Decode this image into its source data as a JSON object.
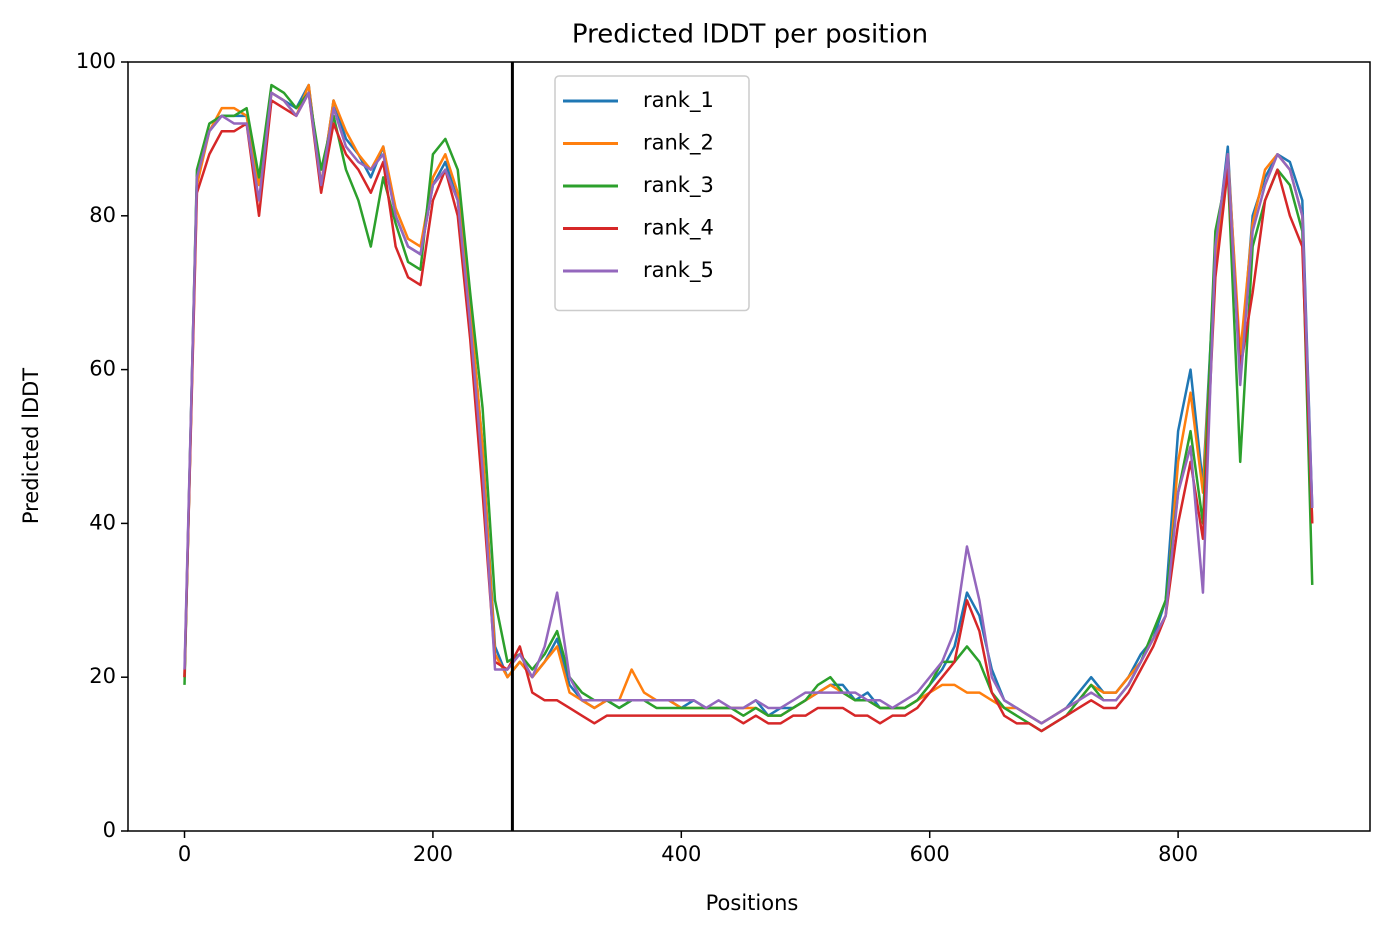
{
  "chart_data": {
    "type": "line",
    "title": "Predicted lDDT per position",
    "xlabel": "Positions",
    "ylabel": "Predicted lDDT",
    "xlim": [
      -45.5,
      954.5
    ],
    "ylim": [
      0,
      100
    ],
    "xticks": [
      0,
      200,
      400,
      600,
      800
    ],
    "yticks": [
      0,
      20,
      40,
      60,
      80,
      100
    ],
    "vline": 264,
    "vline_color": "#000000",
    "legend": "upper center",
    "grid": false,
    "x": [
      0,
      10,
      20,
      30,
      40,
      50,
      60,
      70,
      80,
      90,
      100,
      110,
      120,
      130,
      140,
      150,
      160,
      170,
      180,
      190,
      200,
      210,
      220,
      230,
      240,
      250,
      260,
      270,
      280,
      290,
      300,
      310,
      320,
      330,
      340,
      350,
      360,
      370,
      380,
      390,
      400,
      410,
      420,
      430,
      440,
      450,
      460,
      470,
      480,
      490,
      500,
      510,
      520,
      530,
      540,
      550,
      560,
      570,
      580,
      590,
      600,
      610,
      620,
      630,
      640,
      650,
      660,
      670,
      680,
      690,
      700,
      710,
      720,
      730,
      740,
      750,
      760,
      770,
      780,
      790,
      800,
      810,
      820,
      830,
      840,
      850,
      860,
      870,
      880,
      890,
      900,
      908
    ],
    "series": [
      {
        "name": "rank_1",
        "color": "#1f77b4",
        "values": [
          20,
          85,
          91,
          93,
          93,
          93,
          84,
          96,
          95,
          94,
          97,
          84,
          95,
          90,
          88,
          85,
          89,
          80,
          76,
          75,
          84,
          87,
          82,
          68,
          50,
          24,
          20,
          22,
          20,
          22,
          25,
          19,
          17,
          16,
          17,
          16,
          17,
          17,
          17,
          17,
          16,
          17,
          16,
          16,
          16,
          16,
          17,
          15,
          16,
          16,
          17,
          18,
          19,
          19,
          17,
          18,
          16,
          16,
          16,
          17,
          19,
          21,
          24,
          31,
          28,
          21,
          17,
          16,
          15,
          14,
          15,
          16,
          18,
          20,
          18,
          18,
          20,
          23,
          25,
          30,
          52,
          60,
          45,
          75,
          89,
          60,
          80,
          85,
          88,
          87,
          82,
          42
        ]
      },
      {
        "name": "rank_2",
        "color": "#ff7f0e",
        "values": [
          20,
          84,
          91,
          94,
          94,
          93,
          84,
          96,
          95,
          93,
          97,
          84,
          95,
          91,
          88,
          86,
          89,
          81,
          77,
          76,
          85,
          88,
          83,
          68,
          50,
          23,
          20,
          22,
          20,
          22,
          24,
          18,
          17,
          16,
          17,
          17,
          21,
          18,
          17,
          17,
          16,
          16,
          16,
          16,
          16,
          16,
          16,
          15,
          15,
          16,
          17,
          18,
          19,
          18,
          17,
          17,
          16,
          16,
          16,
          17,
          18,
          19,
          19,
          18,
          18,
          17,
          16,
          16,
          15,
          14,
          15,
          16,
          17,
          19,
          18,
          18,
          20,
          22,
          25,
          28,
          48,
          57,
          44,
          74,
          88,
          62,
          79,
          86,
          88,
          86,
          80,
          40
        ]
      },
      {
        "name": "rank_3",
        "color": "#2ca02c",
        "values": [
          19,
          86,
          92,
          93,
          93,
          94,
          85,
          97,
          96,
          94,
          96,
          86,
          93,
          86,
          82,
          76,
          85,
          79,
          74,
          73,
          88,
          90,
          86,
          70,
          55,
          30,
          22,
          23,
          21,
          23,
          26,
          20,
          18,
          17,
          17,
          16,
          17,
          17,
          16,
          16,
          16,
          16,
          16,
          16,
          16,
          15,
          16,
          15,
          15,
          16,
          17,
          19,
          20,
          18,
          17,
          17,
          16,
          16,
          16,
          17,
          19,
          22,
          22,
          24,
          22,
          18,
          16,
          15,
          14,
          13,
          14,
          15,
          17,
          19,
          17,
          17,
          19,
          22,
          26,
          30,
          44,
          52,
          40,
          78,
          86,
          48,
          76,
          82,
          86,
          84,
          78,
          32
        ]
      },
      {
        "name": "rank_4",
        "color": "#d62728",
        "values": [
          20,
          83,
          88,
          91,
          91,
          92,
          80,
          95,
          94,
          93,
          96,
          83,
          92,
          88,
          86,
          83,
          87,
          76,
          72,
          71,
          82,
          86,
          80,
          64,
          44,
          22,
          21,
          24,
          18,
          17,
          17,
          16,
          15,
          14,
          15,
          15,
          15,
          15,
          15,
          15,
          15,
          15,
          15,
          15,
          15,
          14,
          15,
          14,
          14,
          15,
          15,
          16,
          16,
          16,
          15,
          15,
          14,
          15,
          15,
          16,
          18,
          20,
          22,
          30,
          26,
          18,
          15,
          14,
          14,
          13,
          14,
          15,
          16,
          17,
          16,
          16,
          18,
          21,
          24,
          28,
          40,
          48,
          38,
          72,
          86,
          60,
          70,
          82,
          86,
          80,
          76,
          40
        ]
      },
      {
        "name": "rank_5",
        "color": "#9467bd",
        "values": [
          21,
          85,
          91,
          93,
          92,
          92,
          82,
          96,
          95,
          93,
          96,
          84,
          94,
          89,
          87,
          86,
          88,
          80,
          76,
          75,
          84,
          86,
          82,
          66,
          47,
          21,
          21,
          23,
          20,
          24,
          31,
          20,
          17,
          17,
          17,
          17,
          17,
          17,
          17,
          17,
          17,
          17,
          16,
          17,
          16,
          16,
          17,
          16,
          16,
          17,
          18,
          18,
          18,
          18,
          18,
          17,
          17,
          16,
          17,
          18,
          20,
          22,
          26,
          37,
          30,
          20,
          17,
          16,
          15,
          14,
          15,
          16,
          17,
          18,
          17,
          17,
          19,
          22,
          25,
          28,
          44,
          50,
          31,
          76,
          88,
          58,
          78,
          84,
          88,
          86,
          80,
          42
        ]
      }
    ]
  }
}
